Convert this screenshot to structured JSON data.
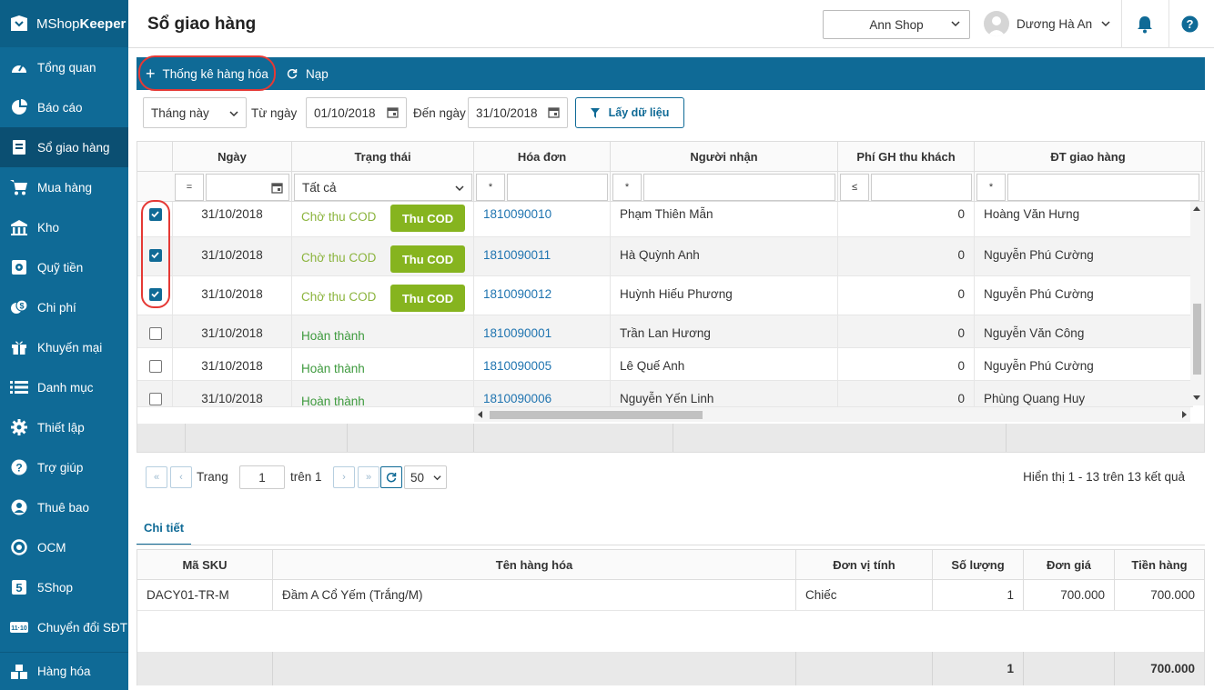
{
  "app": {
    "brand_light": "MShop",
    "brand_bold": "Keeper"
  },
  "sidebar": {
    "items": [
      {
        "label": "Tổng quan",
        "icon": "dashboard-icon"
      },
      {
        "label": "Báo cáo",
        "icon": "pie-chart-icon"
      },
      {
        "label": "Sổ giao hàng",
        "icon": "delivery-book-icon",
        "active": true
      },
      {
        "label": "Mua hàng",
        "icon": "cart-icon"
      },
      {
        "label": "Kho",
        "icon": "warehouse-icon"
      },
      {
        "label": "Quỹ tiền",
        "icon": "safe-icon"
      },
      {
        "label": "Chi phí",
        "icon": "money-icon"
      },
      {
        "label": "Khuyến mại",
        "icon": "gift-icon"
      },
      {
        "label": "Danh mục",
        "icon": "list-icon"
      },
      {
        "label": "Thiết lập",
        "icon": "gear-icon"
      },
      {
        "label": "Trợ giúp",
        "icon": "help-icon"
      },
      {
        "label": "Thuê bao",
        "icon": "user-icon"
      },
      {
        "label": "OCM",
        "icon": "ocm-icon"
      },
      {
        "label": "5Shop",
        "icon": "5shop-icon"
      },
      {
        "label": "Chuyển đổi SĐT",
        "icon": "phone-convert-icon"
      }
    ],
    "bottom": {
      "label": "Hàng hóa",
      "icon": "boxes-icon"
    }
  },
  "header": {
    "title": "Sổ giao hàng",
    "shop": "Ann Shop",
    "user": "Dương Hà An"
  },
  "toolbar": {
    "stats_label": "Thống kê hàng hóa",
    "reload_label": "Nạp"
  },
  "filters": {
    "period": "Tháng này",
    "from_label": "Từ ngày",
    "from_date": "01/10/2018",
    "to_label": "Đến ngày",
    "to_date": "31/10/2018",
    "get_data": "Lấy dữ liệu"
  },
  "grid": {
    "columns": [
      "Ngày",
      "Trạng thái",
      "Hóa đơn",
      "Người nhận",
      "Phí GH thu khách",
      "ĐT giao hàng"
    ],
    "filter_ops": {
      "date": "=",
      "invoice": "*",
      "receiver": "*",
      "fee": "≤",
      "phone": "*"
    },
    "status_filter": "Tất cả",
    "cod_label": "Thu COD",
    "rows": [
      {
        "checked": true,
        "date": "31/10/2018",
        "status": "Chờ thu COD",
        "cod": true,
        "invoice": "1810090010",
        "receiver": "Phạm Thiên Mẫn",
        "fee": "0",
        "shipper": "Hoàng Văn Hưng"
      },
      {
        "checked": true,
        "date": "31/10/2018",
        "status": "Chờ thu COD",
        "cod": true,
        "invoice": "1810090011",
        "receiver": "Hà Quỳnh Anh",
        "fee": "0",
        "shipper": "Nguyễn Phú Cường"
      },
      {
        "checked": true,
        "date": "31/10/2018",
        "status": "Chờ thu COD",
        "cod": true,
        "invoice": "1810090012",
        "receiver": "Huỳnh Hiếu Phương",
        "fee": "0",
        "shipper": "Nguyễn Phú Cường"
      },
      {
        "checked": false,
        "date": "31/10/2018",
        "status": "Hoàn thành",
        "cod": false,
        "invoice": "1810090001",
        "receiver": "Trần Lan Hương",
        "fee": "0",
        "shipper": "Nguyễn Văn Công"
      },
      {
        "checked": false,
        "date": "31/10/2018",
        "status": "Hoàn thành",
        "cod": false,
        "invoice": "1810090005",
        "receiver": "Lê Quế Anh",
        "fee": "0",
        "shipper": "Nguyễn Phú Cường"
      },
      {
        "checked": false,
        "date": "31/10/2018",
        "status": "Hoàn thành",
        "cod": false,
        "invoice": "1810090006",
        "receiver": "Nguyễn Yến Linh",
        "fee": "0",
        "shipper": "Phùng Quang Huy"
      }
    ]
  },
  "pager": {
    "page_label": "Trang",
    "page": "1",
    "of_label": "trên 1",
    "page_size": "50",
    "summary": "Hiển thị 1 - 13 trên 13 kết quả"
  },
  "detail": {
    "tab": "Chi tiết",
    "columns": [
      "Mã SKU",
      "Tên hàng hóa",
      "Đơn vị tính",
      "Số lượng",
      "Đơn giá",
      "Tiền hàng"
    ],
    "row": {
      "sku": "DACY01-TR-M",
      "name": "Đầm A Cổ Yếm (Trắng/M)",
      "unit": "Chiếc",
      "qty": "1",
      "price": "700.000",
      "amount": "700.000"
    },
    "total_qty": "1",
    "total_amount": "700.000"
  }
}
